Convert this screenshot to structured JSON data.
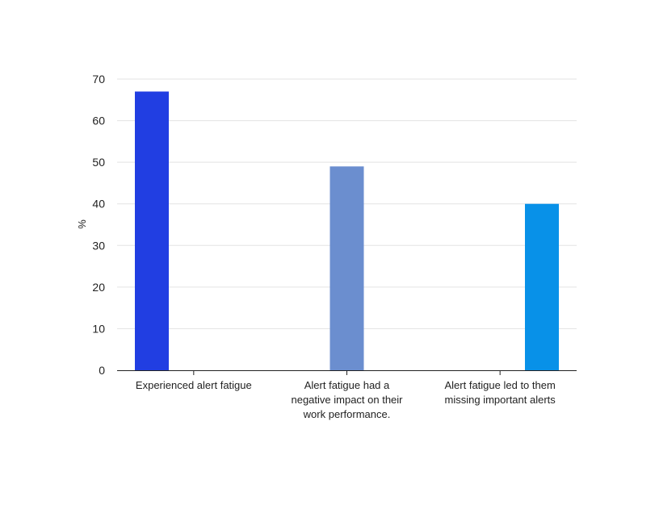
{
  "chart_data": {
    "type": "bar",
    "title": "",
    "xlabel": "",
    "ylabel": "%",
    "ylim": [
      0,
      70
    ],
    "yticks": [
      0,
      10,
      20,
      30,
      40,
      50,
      60,
      70
    ],
    "grid": true,
    "categories": [
      [
        "Experienced alert fatigue"
      ],
      [
        "Alert fatigue had a",
        "negative impact on their",
        "work performance."
      ],
      [
        "Alert fatigue led to them",
        "missing important alerts"
      ]
    ],
    "values": [
      67,
      49,
      40
    ],
    "colors": [
      "#213ee2",
      "#6b8ecf",
      "#0891e8"
    ]
  }
}
